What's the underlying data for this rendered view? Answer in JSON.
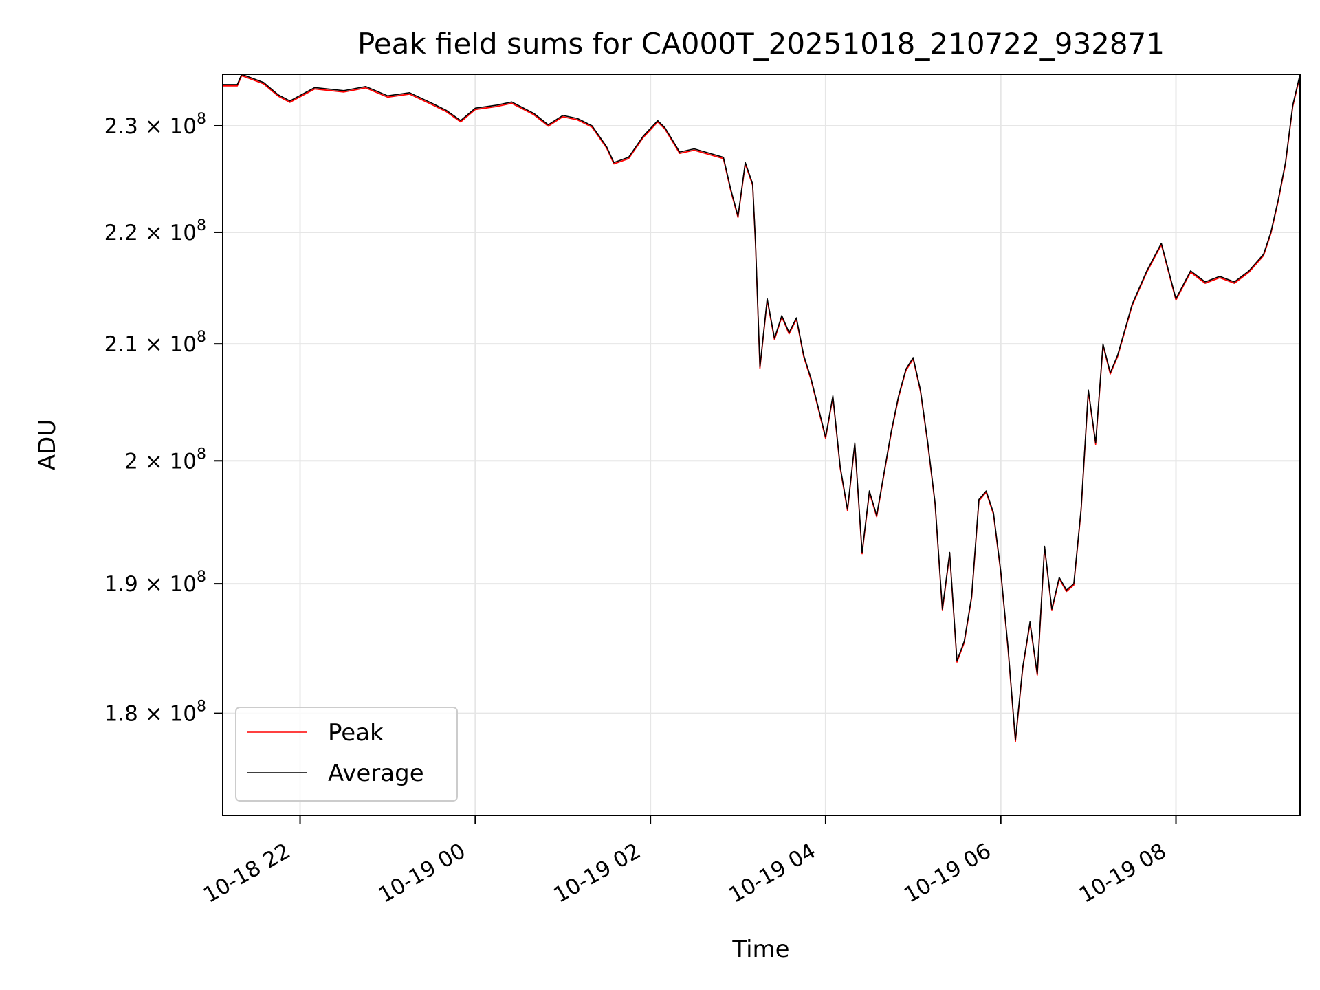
{
  "chart_data": {
    "type": "line",
    "title": "Peak field sums for CA000T_20251018_210722_932871",
    "xlabel": "Time",
    "ylabel": "ADU",
    "y_scale": "log",
    "ylim": [
      172500000,
      235000000
    ],
    "xlim": [
      "2025-10-18 21:07",
      "2025-10-19 09:25"
    ],
    "grid": true,
    "legend_position": "lower-left",
    "x_ticks": [
      {
        "value": "2025-10-18 22:00",
        "label": "10-18 22"
      },
      {
        "value": "2025-10-19 00:00",
        "label": "10-19 00"
      },
      {
        "value": "2025-10-19 02:00",
        "label": "10-19 02"
      },
      {
        "value": "2025-10-19 04:00",
        "label": "10-19 04"
      },
      {
        "value": "2025-10-19 06:00",
        "label": "10-19 06"
      },
      {
        "value": "2025-10-19 08:00",
        "label": "10-19 08"
      }
    ],
    "y_ticks": [
      {
        "value": 180000000,
        "mantissa": "1.8"
      },
      {
        "value": 190000000,
        "mantissa": "1.9"
      },
      {
        "value": 200000000,
        "mantissa": "2"
      },
      {
        "value": 210000000,
        "mantissa": "2.1"
      },
      {
        "value": 220000000,
        "mantissa": "2.2"
      },
      {
        "value": 230000000,
        "mantissa": "2.3"
      }
    ],
    "y_tick_base": "10",
    "y_tick_exponent": "8",
    "y_tick_times": "×",
    "series": [
      {
        "name": "Peak",
        "color": "#ff0000"
      },
      {
        "name": "Average",
        "color": "#000000"
      }
    ],
    "x": [
      "2025-10-18 21:07",
      "2025-10-18 21:17",
      "2025-10-18 21:20",
      "2025-10-18 21:35",
      "2025-10-18 21:45",
      "2025-10-18 21:53",
      "2025-10-18 22:10",
      "2025-10-18 22:30",
      "2025-10-18 22:45",
      "2025-10-18 23:00",
      "2025-10-18 23:15",
      "2025-10-18 23:30",
      "2025-10-18 23:40",
      "2025-10-18 23:50",
      "2025-10-19 00:00",
      "2025-10-19 00:15",
      "2025-10-19 00:25",
      "2025-10-19 00:40",
      "2025-10-19 00:50",
      "2025-10-19 01:00",
      "2025-10-19 01:10",
      "2025-10-19 01:20",
      "2025-10-19 01:30",
      "2025-10-19 01:35",
      "2025-10-19 01:45",
      "2025-10-19 01:55",
      "2025-10-19 02:05",
      "2025-10-19 02:10",
      "2025-10-19 02:20",
      "2025-10-19 02:30",
      "2025-10-19 02:40",
      "2025-10-19 02:50",
      "2025-10-19 02:55",
      "2025-10-19 03:00",
      "2025-10-19 03:05",
      "2025-10-19 03:10",
      "2025-10-19 03:12",
      "2025-10-19 03:15",
      "2025-10-19 03:20",
      "2025-10-19 03:25",
      "2025-10-19 03:30",
      "2025-10-19 03:35",
      "2025-10-19 03:40",
      "2025-10-19 03:45",
      "2025-10-19 03:50",
      "2025-10-19 03:55",
      "2025-10-19 04:00",
      "2025-10-19 04:05",
      "2025-10-19 04:10",
      "2025-10-19 04:15",
      "2025-10-19 04:20",
      "2025-10-19 04:25",
      "2025-10-19 04:30",
      "2025-10-19 04:35",
      "2025-10-19 04:40",
      "2025-10-19 04:45",
      "2025-10-19 04:50",
      "2025-10-19 04:55",
      "2025-10-19 05:00",
      "2025-10-19 05:05",
      "2025-10-19 05:10",
      "2025-10-19 05:15",
      "2025-10-19 05:20",
      "2025-10-19 05:25",
      "2025-10-19 05:30",
      "2025-10-19 05:35",
      "2025-10-19 05:40",
      "2025-10-19 05:45",
      "2025-10-19 05:50",
      "2025-10-19 05:55",
      "2025-10-19 06:00",
      "2025-10-19 06:05",
      "2025-10-19 06:10",
      "2025-10-19 06:15",
      "2025-10-19 06:20",
      "2025-10-19 06:25",
      "2025-10-19 06:30",
      "2025-10-19 06:35",
      "2025-10-19 06:40",
      "2025-10-19 06:45",
      "2025-10-19 06:50",
      "2025-10-19 06:55",
      "2025-10-19 07:00",
      "2025-10-19 07:05",
      "2025-10-19 07:10",
      "2025-10-19 07:15",
      "2025-10-19 07:20",
      "2025-10-19 07:30",
      "2025-10-19 07:40",
      "2025-10-19 07:50",
      "2025-10-19 08:00",
      "2025-10-19 08:10",
      "2025-10-19 08:20",
      "2025-10-19 08:30",
      "2025-10-19 08:40",
      "2025-10-19 08:50",
      "2025-10-19 09:00",
      "2025-10-19 09:05",
      "2025-10-19 09:10",
      "2025-10-19 09:15",
      "2025-10-19 09:20",
      "2025-10-19 09:25"
    ],
    "y": [
      234000000,
      234000000,
      235000000,
      234200000,
      233000000,
      232400000,
      233700000,
      233400000,
      233800000,
      232900000,
      233200000,
      232200000,
      231500000,
      230500000,
      231700000,
      232000000,
      232300000,
      231200000,
      230100000,
      231000000,
      230700000,
      230000000,
      228000000,
      226500000,
      227000000,
      229000000,
      230500000,
      229800000,
      227500000,
      227800000,
      227400000,
      227000000,
      224000000,
      221500000,
      226500000,
      224500000,
      219000000,
      208000000,
      214000000,
      210500000,
      212500000,
      211000000,
      212300000,
      209000000,
      207000000,
      204500000,
      202000000,
      205500000,
      199500000,
      196000000,
      201500000,
      192500000,
      197500000,
      195500000,
      199000000,
      202500000,
      205500000,
      207800000,
      208800000,
      206000000,
      201500000,
      196500000,
      188000000,
      192500000,
      184000000,
      185500000,
      189000000,
      196800000,
      197500000,
      195700000,
      191000000,
      185000000,
      178000000,
      183500000,
      187000000,
      183000000,
      193000000,
      188000000,
      190500000,
      189500000,
      190000000,
      196000000,
      206000000,
      201500000,
      210000000,
      207500000,
      209000000,
      213500000,
      216500000,
      219000000,
      214000000,
      216500000,
      215500000,
      216000000,
      215500000,
      216500000,
      218000000,
      220000000,
      223000000,
      226500000,
      232000000,
      235000000
    ]
  }
}
